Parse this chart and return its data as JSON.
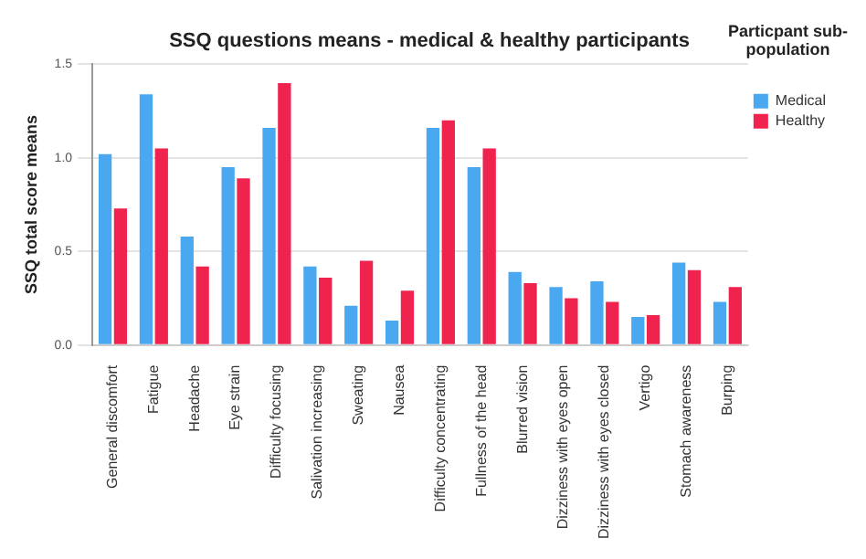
{
  "chart_data": {
    "type": "bar",
    "title": "SSQ questions means - medical & healthy participants",
    "ylabel": "SSQ total score means",
    "legend_title": "Particpant sub-population",
    "categories": [
      "General discomfort",
      "Fatigue",
      "Headache",
      "Eye strain",
      "Difficulty focusing",
      "Salivation increasing",
      "Sweating",
      "Nausea",
      "Difficulty concentrating",
      "Fullness of the head",
      "Blurred vision",
      "Dizziness with eyes open",
      "Dizziness with eyes closed",
      "Vertigo",
      "Stomach awareness",
      "Burping"
    ],
    "series": [
      {
        "name": "Medical",
        "color": "#4aa8f0",
        "values": [
          1.02,
          1.34,
          0.58,
          0.95,
          1.16,
          0.42,
          0.21,
          0.13,
          1.16,
          0.95,
          0.39,
          0.31,
          0.34,
          0.15,
          0.44,
          0.23
        ]
      },
      {
        "name": "Healthy",
        "color": "#f0224e",
        "values": [
          0.73,
          1.05,
          0.42,
          0.89,
          1.4,
          0.36,
          0.45,
          0.29,
          1.2,
          1.05,
          0.33,
          0.25,
          0.23,
          0.16,
          0.4,
          0.31
        ]
      }
    ],
    "ylim": [
      0,
      1.5
    ],
    "yticks": [
      {
        "value": 0,
        "label": "0.0"
      },
      {
        "value": 0.5,
        "label": "0.5"
      },
      {
        "value": 1,
        "label": "1.0"
      },
      {
        "value": 1.5,
        "label": "1.5"
      }
    ],
    "grid": "y",
    "legend": "top right"
  }
}
